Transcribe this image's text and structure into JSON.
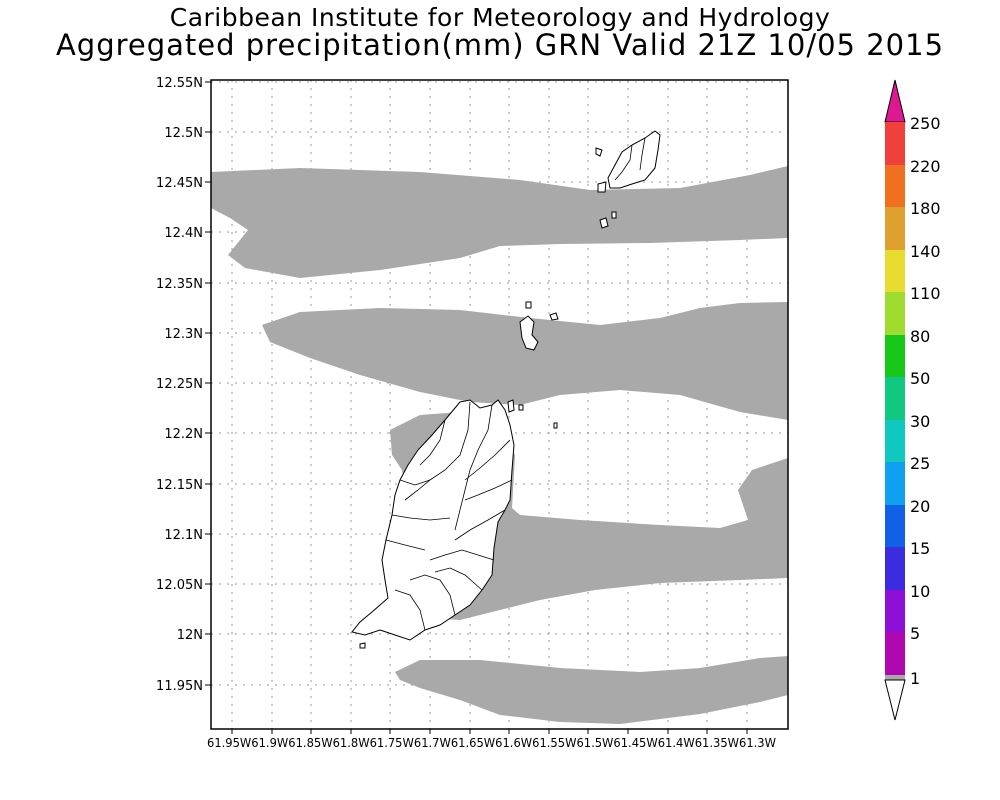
{
  "header": {
    "institute": "Caribbean Institute for Meteorology and Hydrology",
    "product": "Aggregated precipitation(mm) GRN Valid 21Z 10/05 2015"
  },
  "map": {
    "lat_ticks": [
      "12.55N",
      "12.5N",
      "12.45N",
      "12.4N",
      "12.35N",
      "12.3N",
      "12.25N",
      "12.2N",
      "12.15N",
      "12.1N",
      "12.05N",
      "12N",
      "11.95N"
    ],
    "lon_tick_row": "61.95W61.9W61.85W61.8W61.75W61.7W61.65W61.6W61.55W61.5W61.45W61.4W61.35W61.3W",
    "shaded_class_color": "#a9a9a9"
  },
  "legend": {
    "levels": [
      "250",
      "220",
      "180",
      "140",
      "110",
      "80",
      "50",
      "30",
      "25",
      "20",
      "15",
      "10",
      "5",
      "1"
    ],
    "colors": {
      "top_triangle": "#dd1890",
      "250": "#f0403c",
      "220": "#f07020",
      "180": "#e0a030",
      "140": "#e8dc30",
      "110": "#a0dc30",
      "80": "#18c818",
      "50": "#10c880",
      "30": "#10c8c0",
      "25": "#10a0f0",
      "20": "#1060e8",
      "15": "#3c2ce0",
      "10": "#8c10d8",
      "5": "#b008b0",
      "1": "#a9a9a9",
      "bottom_triangle": "#ffffff"
    }
  }
}
